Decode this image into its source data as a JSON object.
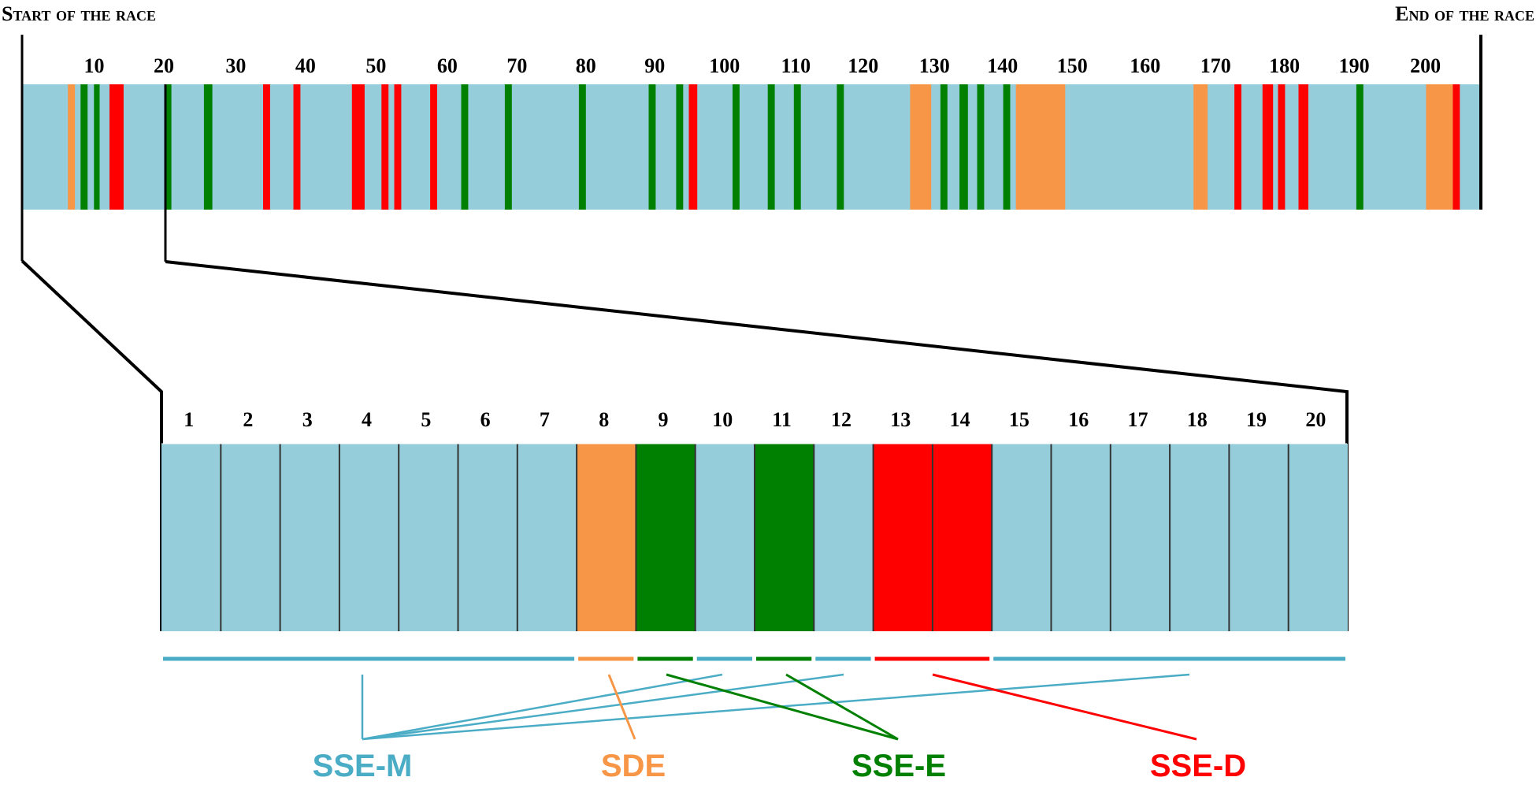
{
  "header": {
    "start_label": "Start of the race",
    "end_label": "End of the race"
  },
  "colors": {
    "background_blue": "#96cddb",
    "sde_orange": "#f79646",
    "sse_e_green": "#008000",
    "sse_d_red": "#ff0000",
    "sse_m_blue": "#4bacc6",
    "frame": "#000000"
  },
  "overview": {
    "tick_labels": [
      "10",
      "20",
      "30",
      "40",
      "50",
      "60",
      "70",
      "80",
      "90",
      "100",
      "110",
      "120",
      "130",
      "140",
      "150",
      "160",
      "170",
      "180",
      "190",
      "200"
    ],
    "tick_values": [
      10,
      20,
      30,
      40,
      50,
      60,
      70,
      80,
      90,
      100,
      110,
      120,
      130,
      140,
      150,
      160,
      170,
      180,
      190,
      200
    ],
    "total_strokes": 204,
    "events": [
      {
        "from": 6.5,
        "to": 7.5,
        "type": "SDE"
      },
      {
        "from": 8.3,
        "to": 9.3,
        "type": "SSE-E"
      },
      {
        "from": 10.2,
        "to": 11.0,
        "type": "SSE-E"
      },
      {
        "from": 12.4,
        "to": 14.4,
        "type": "SSE-D"
      },
      {
        "from": 20.2,
        "to": 21.2,
        "type": "SSE-E"
      },
      {
        "from": 25.8,
        "to": 27.0,
        "type": "SSE-E"
      },
      {
        "from": 34.2,
        "to": 35.2,
        "type": "SSE-D"
      },
      {
        "from": 38.5,
        "to": 39.5,
        "type": "SSE-D"
      },
      {
        "from": 46.8,
        "to": 48.6,
        "type": "SSE-D"
      },
      {
        "from": 51.0,
        "to": 52.0,
        "type": "SSE-D"
      },
      {
        "from": 52.8,
        "to": 53.8,
        "type": "SSE-D"
      },
      {
        "from": 57.9,
        "to": 58.9,
        "type": "SSE-D"
      },
      {
        "from": 62.3,
        "to": 63.3,
        "type": "SSE-E"
      },
      {
        "from": 68.5,
        "to": 69.5,
        "type": "SSE-E"
      },
      {
        "from": 79.0,
        "to": 80.0,
        "type": "SSE-E"
      },
      {
        "from": 88.9,
        "to": 89.9,
        "type": "SSE-E"
      },
      {
        "from": 92.8,
        "to": 93.8,
        "type": "SSE-E"
      },
      {
        "from": 94.6,
        "to": 95.8,
        "type": "SSE-D"
      },
      {
        "from": 100.8,
        "to": 101.8,
        "type": "SSE-E"
      },
      {
        "from": 105.8,
        "to": 106.8,
        "type": "SSE-E"
      },
      {
        "from": 109.5,
        "to": 110.5,
        "type": "SSE-E"
      },
      {
        "from": 115.6,
        "to": 116.6,
        "type": "SSE-E"
      },
      {
        "from": 126.0,
        "to": 129.0,
        "type": "SDE"
      },
      {
        "from": 130.3,
        "to": 131.3,
        "type": "SSE-E"
      },
      {
        "from": 133.0,
        "to": 134.2,
        "type": "SSE-E"
      },
      {
        "from": 135.5,
        "to": 136.5,
        "type": "SSE-E"
      },
      {
        "from": 139.2,
        "to": 140.2,
        "type": "SSE-E"
      },
      {
        "from": 141.0,
        "to": 148.0,
        "type": "SDE"
      },
      {
        "from": 166.2,
        "to": 168.2,
        "type": "SDE"
      },
      {
        "from": 172.0,
        "to": 173.0,
        "type": "SSE-D"
      },
      {
        "from": 176.0,
        "to": 177.5,
        "type": "SSE-D"
      },
      {
        "from": 178.2,
        "to": 179.2,
        "type": "SSE-D"
      },
      {
        "from": 181.1,
        "to": 182.5,
        "type": "SSE-D"
      },
      {
        "from": 189.3,
        "to": 190.3,
        "type": "SSE-E"
      },
      {
        "from": 199.2,
        "to": 203.0,
        "type": "SDE"
      },
      {
        "from": 203.0,
        "to": 204.0,
        "type": "SSE-D"
      }
    ]
  },
  "zoom": {
    "stroke_labels": [
      "1",
      "2",
      "3",
      "4",
      "5",
      "6",
      "7",
      "8",
      "9",
      "10",
      "11",
      "12",
      "13",
      "14",
      "15",
      "16",
      "17",
      "18",
      "19",
      "20"
    ],
    "stroke_types": [
      "SSE-M",
      "SSE-M",
      "SSE-M",
      "SSE-M",
      "SSE-M",
      "SSE-M",
      "SSE-M",
      "SDE",
      "SSE-E",
      "SSE-M",
      "SSE-E",
      "SSE-M",
      "SSE-D",
      "SSE-D",
      "SSE-M",
      "SSE-M",
      "SSE-M",
      "SSE-M",
      "SSE-M",
      "SSE-M"
    ],
    "segments": [
      {
        "from": 1,
        "to": 7,
        "type": "SSE-M"
      },
      {
        "from": 8,
        "to": 8,
        "type": "SDE"
      },
      {
        "from": 9,
        "to": 9,
        "type": "SSE-E"
      },
      {
        "from": 10,
        "to": 10,
        "type": "SSE-M"
      },
      {
        "from": 11,
        "to": 11,
        "type": "SSE-E"
      },
      {
        "from": 12,
        "to": 12,
        "type": "SSE-M"
      },
      {
        "from": 13,
        "to": 14,
        "type": "SSE-D"
      },
      {
        "from": 15,
        "to": 20,
        "type": "SSE-M"
      }
    ]
  },
  "legend": [
    {
      "key": "SSE-M",
      "label": "SSE-M",
      "links_from_segment": [
        0,
        3,
        5,
        7
      ]
    },
    {
      "key": "SDE",
      "label": "SDE",
      "links_from_segment": [
        1
      ]
    },
    {
      "key": "SSE-E",
      "label": "SSE-E",
      "links_from_segment": [
        2,
        4
      ]
    },
    {
      "key": "SSE-D",
      "label": "SSE-D",
      "links_from_segment": [
        6
      ]
    }
  ]
}
